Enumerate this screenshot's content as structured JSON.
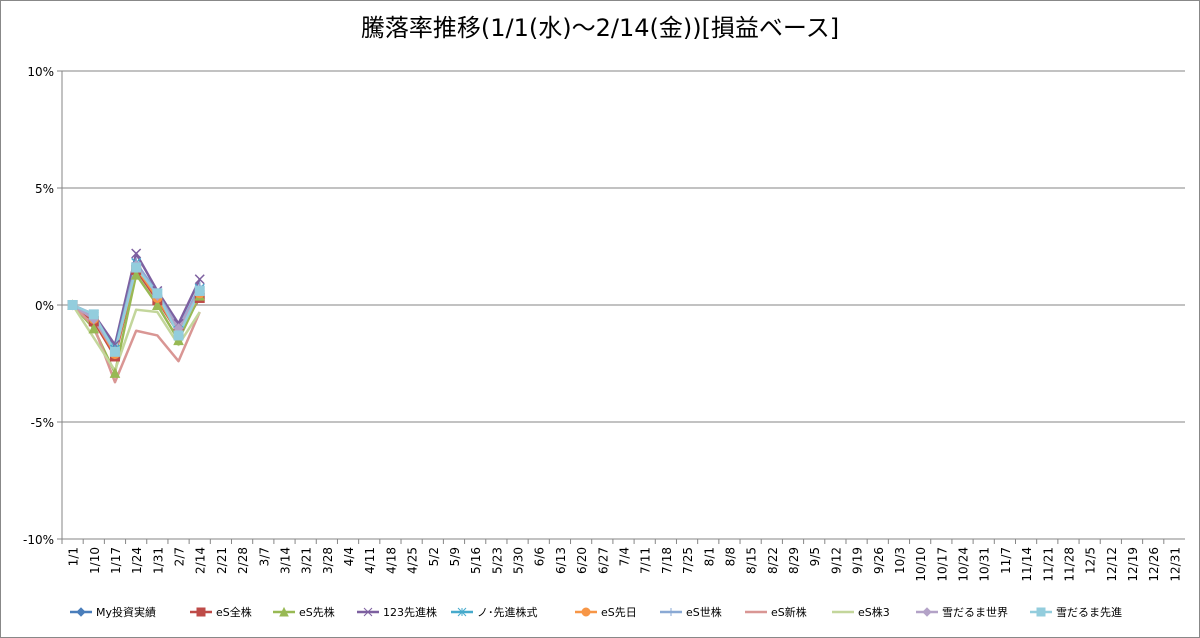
{
  "chart_data": {
    "type": "line",
    "title": "騰落率推移(1/1(水)～2/14(金))[損益ベース]",
    "categories": [
      "1/1",
      "1/10",
      "1/17",
      "1/24",
      "1/31",
      "2/7",
      "2/14",
      "2/21",
      "2/28",
      "3/7",
      "3/14",
      "3/21",
      "3/28",
      "4/4",
      "4/11",
      "4/18",
      "4/25",
      "5/2",
      "5/9",
      "5/16",
      "5/23",
      "5/30",
      "6/6",
      "6/13",
      "6/20",
      "6/27",
      "7/4",
      "7/11",
      "7/18",
      "7/25",
      "8/1",
      "8/8",
      "8/15",
      "8/22",
      "8/29",
      "9/5",
      "9/12",
      "9/19",
      "9/26",
      "10/3",
      "10/10",
      "10/17",
      "10/24",
      "10/31",
      "11/7",
      "11/14",
      "11/21",
      "11/28",
      "12/5",
      "12/12",
      "12/19",
      "12/26",
      "12/31"
    ],
    "ylim": [
      -10,
      10
    ],
    "yticks": [
      {
        "value": -10,
        "label": "-10%"
      },
      {
        "value": -5,
        "label": "-5%"
      },
      {
        "value": 0,
        "label": "0%"
      },
      {
        "value": 5,
        "label": "5%"
      },
      {
        "value": 10,
        "label": "10%"
      }
    ],
    "grid": true,
    "legend": "bottom",
    "series": [
      {
        "name": "My投資実績",
        "color": "#4a7ebb",
        "marker": "diamond",
        "values": [
          0,
          -0.5,
          -2.0,
          1.7,
          0.4,
          -1.0,
          0.6,
          null,
          null,
          null,
          null,
          null,
          null,
          null,
          null,
          null,
          null,
          null,
          null,
          null,
          null,
          null,
          null,
          null,
          null,
          null,
          null,
          null,
          null,
          null,
          null,
          null,
          null,
          null,
          null,
          null,
          null,
          null,
          null,
          null,
          null,
          null,
          null,
          null,
          null,
          null,
          null,
          null,
          null,
          null,
          null,
          null,
          null
        ]
      },
      {
        "name": "eS全株",
        "color": "#be4b48",
        "marker": "square",
        "values": [
          0,
          -0.7,
          -2.2,
          1.5,
          0.2,
          -1.2,
          0.3,
          null,
          null,
          null,
          null,
          null,
          null,
          null,
          null,
          null,
          null,
          null,
          null,
          null,
          null,
          null,
          null,
          null,
          null,
          null,
          null,
          null,
          null,
          null,
          null,
          null,
          null,
          null,
          null,
          null,
          null,
          null,
          null,
          null,
          null,
          null,
          null,
          null,
          null,
          null,
          null,
          null,
          null,
          null,
          null,
          null,
          null
        ]
      },
      {
        "name": "eS先株",
        "color": "#98b954",
        "marker": "triangle",
        "values": [
          0,
          -1.0,
          -2.9,
          1.3,
          0.0,
          -1.5,
          0.4,
          null,
          null,
          null,
          null,
          null,
          null,
          null,
          null,
          null,
          null,
          null,
          null,
          null,
          null,
          null,
          null,
          null,
          null,
          null,
          null,
          null,
          null,
          null,
          null,
          null,
          null,
          null,
          null,
          null,
          null,
          null,
          null,
          null,
          null,
          null,
          null,
          null,
          null,
          null,
          null,
          null,
          null,
          null,
          null,
          null,
          null
        ]
      },
      {
        "name": "123先進株",
        "color": "#7d60a0",
        "marker": "x",
        "values": [
          0,
          -0.4,
          -1.7,
          2.2,
          0.6,
          -0.8,
          1.1,
          null,
          null,
          null,
          null,
          null,
          null,
          null,
          null,
          null,
          null,
          null,
          null,
          null,
          null,
          null,
          null,
          null,
          null,
          null,
          null,
          null,
          null,
          null,
          null,
          null,
          null,
          null,
          null,
          null,
          null,
          null,
          null,
          null,
          null,
          null,
          null,
          null,
          null,
          null,
          null,
          null,
          null,
          null,
          null,
          null,
          null
        ]
      },
      {
        "name": "ノ･先進株式",
        "color": "#46aacc",
        "marker": "star",
        "values": [
          0,
          -0.5,
          -1.9,
          1.8,
          0.5,
          -1.1,
          0.7,
          null,
          null,
          null,
          null,
          null,
          null,
          null,
          null,
          null,
          null,
          null,
          null,
          null,
          null,
          null,
          null,
          null,
          null,
          null,
          null,
          null,
          null,
          null,
          null,
          null,
          null,
          null,
          null,
          null,
          null,
          null,
          null,
          null,
          null,
          null,
          null,
          null,
          null,
          null,
          null,
          null,
          null,
          null,
          null,
          null,
          null
        ]
      },
      {
        "name": "eS先日",
        "color": "#f79646",
        "marker": "circle",
        "values": [
          0,
          -0.6,
          -2.1,
          1.6,
          0.3,
          -1.2,
          0.5,
          null,
          null,
          null,
          null,
          null,
          null,
          null,
          null,
          null,
          null,
          null,
          null,
          null,
          null,
          null,
          null,
          null,
          null,
          null,
          null,
          null,
          null,
          null,
          null,
          null,
          null,
          null,
          null,
          null,
          null,
          null,
          null,
          null,
          null,
          null,
          null,
          null,
          null,
          null,
          null,
          null,
          null,
          null,
          null,
          null,
          null
        ]
      },
      {
        "name": "eS世株",
        "color": "#8aa9d4",
        "marker": "plus",
        "values": [
          0,
          -0.5,
          -2.0,
          1.8,
          0.5,
          -1.0,
          0.8,
          null,
          null,
          null,
          null,
          null,
          null,
          null,
          null,
          null,
          null,
          null,
          null,
          null,
          null,
          null,
          null,
          null,
          null,
          null,
          null,
          null,
          null,
          null,
          null,
          null,
          null,
          null,
          null,
          null,
          null,
          null,
          null,
          null,
          null,
          null,
          null,
          null,
          null,
          null,
          null,
          null,
          null,
          null,
          null,
          null,
          null
        ]
      },
      {
        "name": "eS新株",
        "color": "#d99694",
        "marker": "none",
        "values": [
          0,
          -0.9,
          -3.3,
          -1.1,
          -1.3,
          -2.4,
          -0.3,
          null,
          null,
          null,
          null,
          null,
          null,
          null,
          null,
          null,
          null,
          null,
          null,
          null,
          null,
          null,
          null,
          null,
          null,
          null,
          null,
          null,
          null,
          null,
          null,
          null,
          null,
          null,
          null,
          null,
          null,
          null,
          null,
          null,
          null,
          null,
          null,
          null,
          null,
          null,
          null,
          null,
          null,
          null,
          null,
          null,
          null
        ]
      },
      {
        "name": "eS株3",
        "color": "#c3d69b",
        "marker": "none",
        "values": [
          0,
          -1.4,
          -2.8,
          -0.2,
          -0.3,
          -1.7,
          -0.3,
          null,
          null,
          null,
          null,
          null,
          null,
          null,
          null,
          null,
          null,
          null,
          null,
          null,
          null,
          null,
          null,
          null,
          null,
          null,
          null,
          null,
          null,
          null,
          null,
          null,
          null,
          null,
          null,
          null,
          null,
          null,
          null,
          null,
          null,
          null,
          null,
          null,
          null,
          null,
          null,
          null,
          null,
          null,
          null,
          null,
          null
        ]
      },
      {
        "name": "雪だるま世界",
        "color": "#b3a2c7",
        "marker": "diamond",
        "values": [
          0,
          -0.6,
          -2.0,
          1.7,
          0.4,
          -1.0,
          0.6,
          null,
          null,
          null,
          null,
          null,
          null,
          null,
          null,
          null,
          null,
          null,
          null,
          null,
          null,
          null,
          null,
          null,
          null,
          null,
          null,
          null,
          null,
          null,
          null,
          null,
          null,
          null,
          null,
          null,
          null,
          null,
          null,
          null,
          null,
          null,
          null,
          null,
          null,
          null,
          null,
          null,
          null,
          null,
          null,
          null,
          null
        ]
      },
      {
        "name": "雪だるま先進",
        "color": "#93cddd",
        "marker": "square",
        "values": [
          0,
          -0.4,
          -2.0,
          1.6,
          0.5,
          -1.3,
          0.6,
          null,
          null,
          null,
          null,
          null,
          null,
          null,
          null,
          null,
          null,
          null,
          null,
          null,
          null,
          null,
          null,
          null,
          null,
          null,
          null,
          null,
          null,
          null,
          null,
          null,
          null,
          null,
          null,
          null,
          null,
          null,
          null,
          null,
          null,
          null,
          null,
          null,
          null,
          null,
          null,
          null,
          null,
          null,
          null,
          null,
          null
        ]
      }
    ]
  }
}
